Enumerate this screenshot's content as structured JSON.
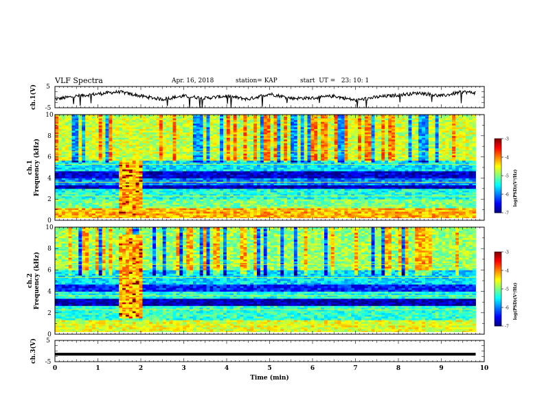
{
  "header": {
    "title": "VLF Spectra",
    "date": "Apr. 16, 2018",
    "station": "station= KAP",
    "start": "start  UT =   23: 10: 1"
  },
  "chart_data": [
    {
      "type": "line",
      "panel": "ch1-waveform",
      "ylabel": "ch.1(V)",
      "ylim": [
        -5,
        5
      ],
      "y_ticks": [
        "5",
        "-5"
      ],
      "xlim": [
        0,
        10
      ],
      "x": [
        0,
        0.5,
        1,
        1.5,
        2,
        2.5,
        3,
        3.5,
        4,
        4.5,
        5,
        5.5,
        6,
        6.5,
        7,
        7.5,
        8,
        8.5,
        9,
        9.5,
        9.8
      ],
      "values": [
        -1,
        0.5,
        1.5,
        2.5,
        0.5,
        -1,
        0.5,
        -0.5,
        0.5,
        -1,
        1.5,
        -0.5,
        -0.5,
        0.5,
        -1.5,
        0,
        1,
        2,
        0.5,
        2.5,
        2
      ]
    },
    {
      "type": "heatmap",
      "panel": "ch1-spectrogram",
      "ylabel": "Frequency (kHz)",
      "channel_label": "ch.1",
      "xlim": [
        0,
        10
      ],
      "ylim": [
        0,
        10
      ],
      "y_ticks": [
        "0",
        "2",
        "4",
        "6",
        "8",
        "10"
      ],
      "data_end_min": 9.8,
      "colorbar": {
        "label": "log(PSD)(V²/Hz)",
        "range": [
          -7,
          -3
        ],
        "ticks": [
          "-3",
          "-4",
          "-5",
          "-6",
          "-7"
        ]
      },
      "burst": {
        "t_start": 1.5,
        "t_end": 2.05,
        "f_low": 0.3,
        "f_high": 5.6
      },
      "bands": [
        {
          "f_low": 0.2,
          "f_high": 1.2,
          "level": -4.2
        },
        {
          "f_low": 1.2,
          "f_high": 2.0,
          "level": -5.0
        },
        {
          "f_low": 2.0,
          "f_high": 3.0,
          "level": -5.4
        },
        {
          "f_low": 3.0,
          "f_high": 3.4,
          "level": -6.8
        },
        {
          "f_low": 3.4,
          "f_high": 4.0,
          "level": -6.0
        },
        {
          "f_low": 4.0,
          "f_high": 4.6,
          "level": -6.7
        },
        {
          "f_low": 4.6,
          "f_high": 5.6,
          "level": -5.6
        },
        {
          "f_low": 5.6,
          "f_high": 10.0,
          "level": -4.7
        }
      ]
    },
    {
      "type": "heatmap",
      "panel": "ch2-spectrogram",
      "ylabel": "Frequency (kHz)",
      "channel_label": "ch.2",
      "xlim": [
        0,
        10
      ],
      "ylim": [
        0,
        10
      ],
      "y_ticks": [
        "0",
        "2",
        "4",
        "6",
        "8",
        "10"
      ],
      "data_end_min": 9.8,
      "colorbar": {
        "label": "log(PSD)(V²/Hz)",
        "range": [
          -7,
          -3
        ],
        "ticks": [
          "-3",
          "-4",
          "-5",
          "-6",
          "-7"
        ]
      },
      "burst": {
        "t_start": 1.5,
        "t_end": 2.05,
        "f_low": 1.5,
        "f_high": 9.3
      },
      "bands": [
        {
          "f_low": 0.2,
          "f_high": 1.4,
          "level": -4.6
        },
        {
          "f_low": 1.4,
          "f_high": 2.6,
          "level": -5.3
        },
        {
          "f_low": 2.6,
          "f_high": 3.4,
          "level": -6.8
        },
        {
          "f_low": 3.4,
          "f_high": 4.0,
          "level": -5.4
        },
        {
          "f_low": 4.0,
          "f_high": 4.6,
          "level": -6.4
        },
        {
          "f_low": 4.6,
          "f_high": 6.0,
          "level": -5.6
        },
        {
          "f_low": 6.0,
          "f_high": 10.0,
          "level": -4.9
        }
      ]
    },
    {
      "type": "line",
      "panel": "ch3-waveform",
      "ylabel": "ch.3(V)",
      "ylim": [
        -5,
        5
      ],
      "y_ticks": [
        "5",
        "-5"
      ],
      "xlim": [
        0,
        10
      ],
      "xlabel": "Time  (min)",
      "x_ticks": [
        "0",
        "1",
        "2",
        "3",
        "4",
        "5",
        "6",
        "7",
        "8",
        "9",
        "10"
      ],
      "x": [
        0,
        9.8
      ],
      "values": [
        -1.5,
        -1.5
      ]
    }
  ]
}
